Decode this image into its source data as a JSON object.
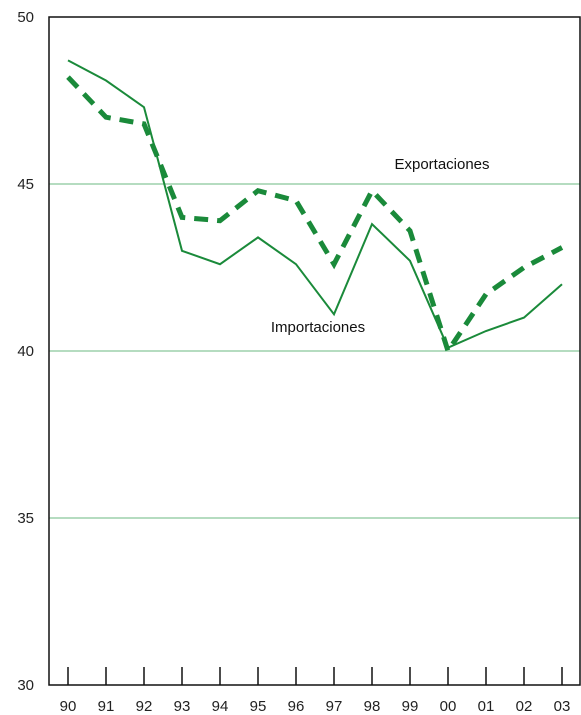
{
  "chart_data": {
    "type": "line",
    "title": "",
    "xlabel": "",
    "ylabel": "",
    "categories": [
      "90",
      "91",
      "92",
      "93",
      "94",
      "95",
      "96",
      "97",
      "98",
      "99",
      "00",
      "01",
      "02",
      "03"
    ],
    "ylim": [
      30,
      50
    ],
    "yticks": [
      30,
      35,
      40,
      45,
      50
    ],
    "grid": true,
    "colors": {
      "line": "#1a8a3a",
      "grid": "#b5dcc0",
      "axis": "#111111"
    },
    "series": [
      {
        "name": "Exportaciones",
        "style": "dashed",
        "values": [
          48.2,
          47.0,
          46.8,
          44.0,
          43.9,
          44.8,
          44.5,
          42.6,
          44.8,
          43.6,
          40.0,
          41.7,
          42.5,
          43.1
        ]
      },
      {
        "name": "Importaciones",
        "style": "solid",
        "values": [
          48.7,
          48.1,
          47.3,
          43.0,
          42.6,
          43.4,
          42.6,
          41.1,
          43.8,
          42.7,
          40.1,
          40.6,
          41.0,
          42.0
        ]
      }
    ]
  }
}
